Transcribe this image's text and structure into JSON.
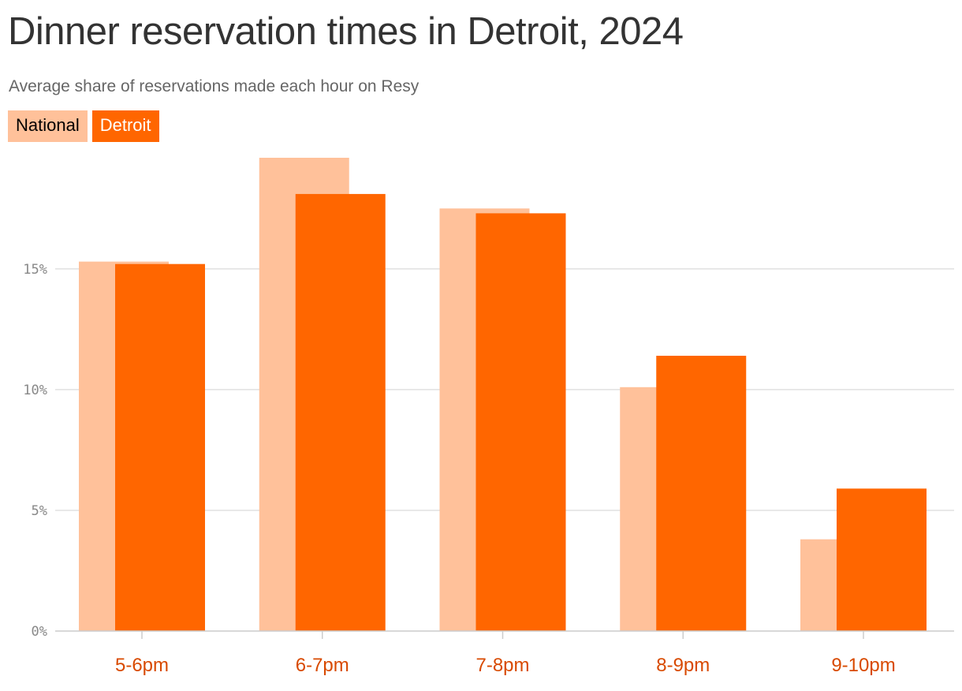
{
  "title": "Dinner reservation times in Detroit, 2024",
  "subtitle": "Average share of reservations made each hour on Resy",
  "colors": {
    "national": "#ffc19a",
    "detroit": "#ff6600",
    "xtick": "#d84a00",
    "grid": "#e0e0e0",
    "text": "#333333"
  },
  "chart_data": {
    "type": "bar",
    "categories": [
      "5-6pm",
      "6-7pm",
      "7-8pm",
      "8-9pm",
      "9-10pm"
    ],
    "series": [
      {
        "name": "National",
        "values": [
          15.3,
          19.6,
          17.5,
          10.1,
          3.8
        ]
      },
      {
        "name": "Detroit",
        "values": [
          15.2,
          18.1,
          17.3,
          11.4,
          5.9
        ]
      }
    ],
    "yticks": [
      0,
      5,
      10,
      15
    ],
    "ytick_labels": [
      "0%",
      "5%",
      "10%",
      "15%"
    ],
    "ylim": [
      0,
      19.6
    ],
    "grid": true,
    "legend_position": "top-left",
    "xlabel": "",
    "ylabel": ""
  }
}
